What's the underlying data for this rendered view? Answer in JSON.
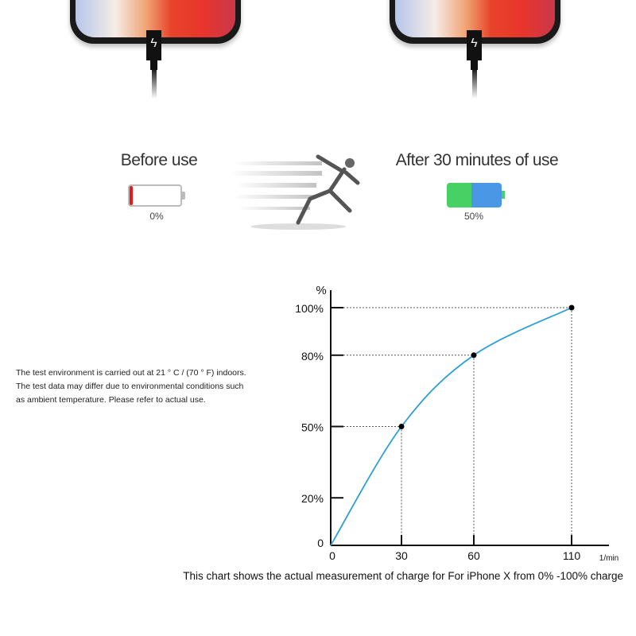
{
  "before": {
    "label": "Before use",
    "percent_label": "0%",
    "level": 0,
    "color": "#e51b1b"
  },
  "after": {
    "label": "After 30 minutes of use",
    "percent_label": "50%",
    "level": 50,
    "colors": [
      "#47d064",
      "#4a97e6"
    ]
  },
  "note": {
    "lines": [
      "The test environment is carried out at 21 ° C / (70 ° F) indoors.",
      "The test data may differ due to environmental conditions such",
      "as ambient temperature. Please refer to actual use."
    ]
  },
  "chart_data": {
    "type": "line",
    "title": "",
    "caption": "This chart shows the actual measurement of charge for For iPhone X from 0% -100% charge",
    "ylabel": "%",
    "xlabel": "1/min",
    "x_ticks": [
      "0",
      "30",
      "60",
      "110"
    ],
    "y_ticks": [
      "0",
      "20%",
      "50%",
      "80%",
      "100%"
    ],
    "x_tick_values": [
      0,
      30,
      60,
      110
    ],
    "y_tick_values": [
      0,
      20,
      50,
      80,
      100
    ],
    "ylim": [
      0,
      100
    ],
    "xlim": [
      0,
      110
    ],
    "line_color": "#2a9fd6",
    "points": [
      {
        "x": 0,
        "y": 0
      },
      {
        "x": 30,
        "y": 50
      },
      {
        "x": 60,
        "y": 80
      },
      {
        "x": 110,
        "y": 100
      }
    ],
    "marked_points": [
      {
        "x": 30,
        "y": 50
      },
      {
        "x": 60,
        "y": 80
      },
      {
        "x": 110,
        "y": 100
      }
    ],
    "guides": "dotted"
  }
}
